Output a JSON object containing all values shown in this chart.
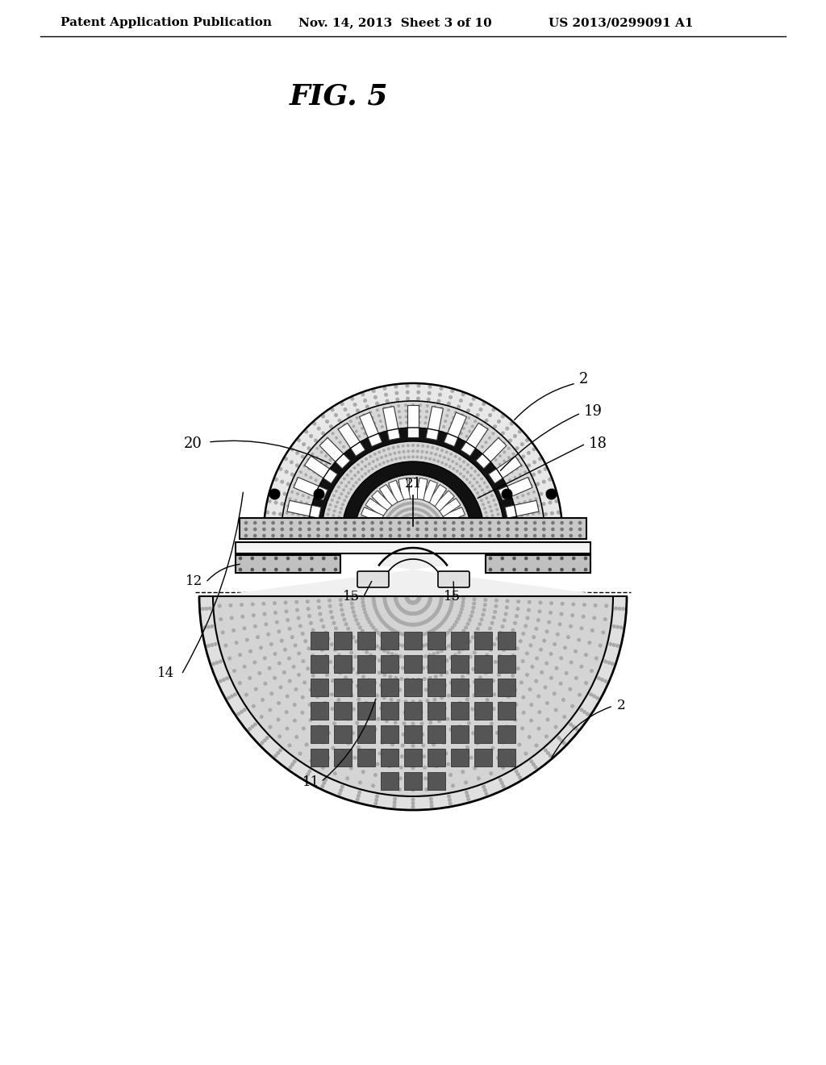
{
  "bg_color": "#ffffff",
  "header_text": "Patent Application Publication",
  "header_date": "Nov. 14, 2013  Sheet 3 of 10",
  "header_patent": "US 2013/0299091 A1",
  "fig_label": "FIG. 5",
  "stipple_light": "#c8c8c8",
  "stipple_mid": "#aaaaaa",
  "stipple_dark": "#888888",
  "black": "#1a1a1a",
  "white": "#ffffff",
  "line_color": "#000000"
}
